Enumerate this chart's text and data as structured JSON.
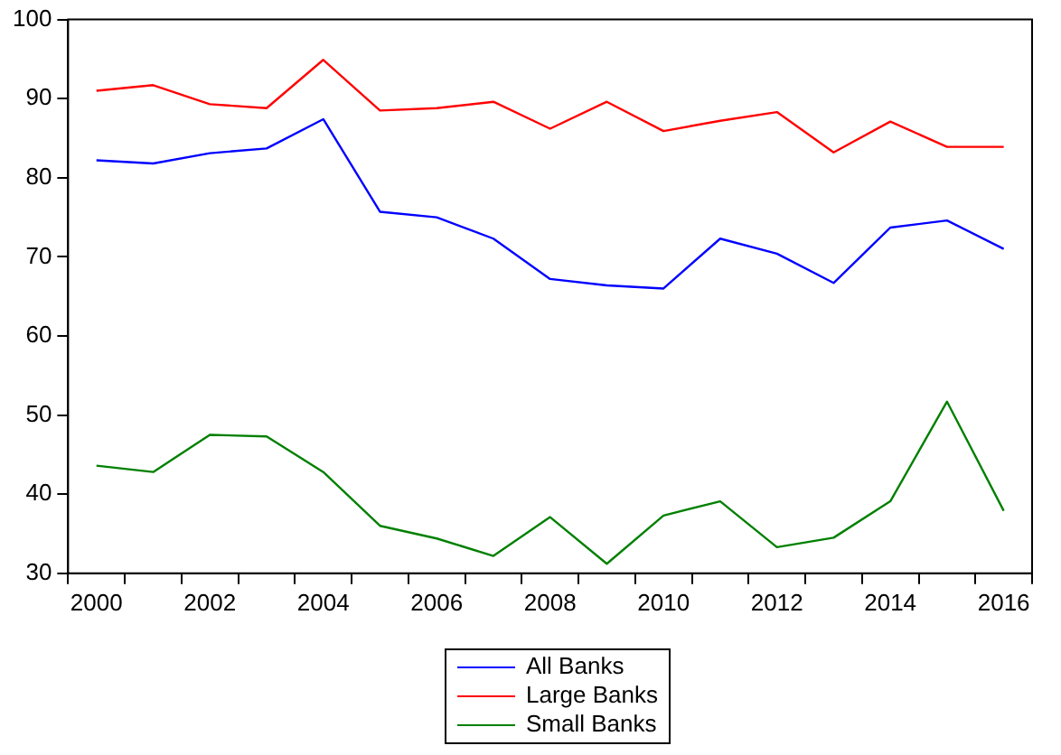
{
  "chart_data": {
    "type": "line",
    "categories": [
      "2000",
      null,
      "2002",
      null,
      "2004",
      null,
      "2006",
      null,
      "2008",
      null,
      "2010",
      null,
      "2012",
      null,
      "2014",
      null,
      "2016"
    ],
    "series": [
      {
        "name": "All Banks",
        "color": "#0000ff",
        "values": [
          82.2,
          81.8,
          83.1,
          83.7,
          87.4,
          75.7,
          75.0,
          72.3,
          67.2,
          66.4,
          66.0,
          72.3,
          70.4,
          66.7,
          73.7,
          74.6,
          71.0
        ]
      },
      {
        "name": "Large Banks",
        "color": "#ff0000",
        "values": [
          91.0,
          91.7,
          89.3,
          88.8,
          94.9,
          88.5,
          88.8,
          89.6,
          86.2,
          89.6,
          85.9,
          87.2,
          88.3,
          83.2,
          87.1,
          83.9,
          83.9
        ]
      },
      {
        "name": "Small Banks",
        "color": "#008000",
        "values": [
          43.6,
          42.8,
          47.5,
          47.3,
          42.8,
          36.0,
          34.4,
          32.2,
          37.1,
          31.2,
          37.3,
          39.1,
          33.3,
          34.5,
          39.1,
          51.7,
          37.9
        ]
      }
    ],
    "ylim": [
      30,
      100
    ],
    "yticks": [
      30,
      40,
      50,
      60,
      70,
      80,
      90,
      100
    ],
    "grid": false,
    "legend": "bottom",
    "marker": "none",
    "line_style": "solid"
  }
}
